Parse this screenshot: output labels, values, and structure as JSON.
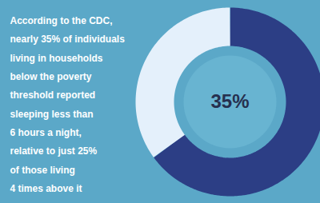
{
  "chart_data": {
    "type": "donut",
    "categories": [
      null,
      null
    ],
    "values": [
      65,
      35
    ],
    "colors": [
      "#2c3e85",
      "#e4f0fb"
    ],
    "data_labels": true,
    "value_labels": [
      null,
      "35%"
    ],
    "annotations": [
      "According to the CDC,\nnearly 35% of individuals\nliving in households\nbelow the poverty\nthreshold reported\nsleeping less than\n6 hours a night,\nrelative to just 25%\nof those living\n4 times above it"
    ]
  }
}
